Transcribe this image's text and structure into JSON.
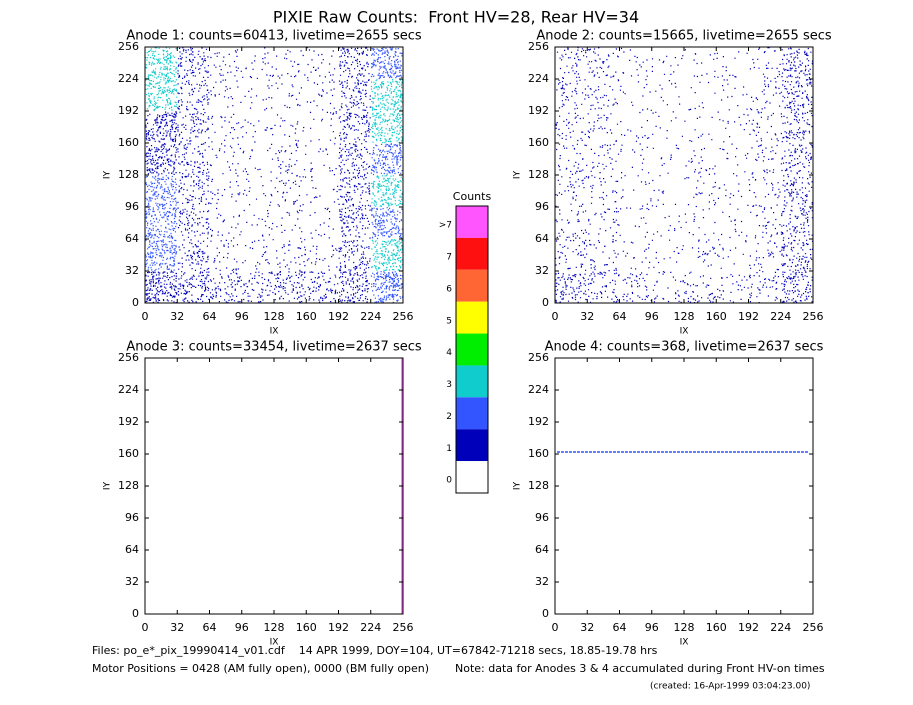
{
  "title": "PIXIE Raw Counts:  Front HV=28, Rear HV=34",
  "chart_data": [
    {
      "type": "heatmap",
      "title": "Anode 1: counts=60413, livetime=2655 secs",
      "xlabel": "IX",
      "ylabel": "IY",
      "xlim": [
        0,
        256
      ],
      "ylim": [
        0,
        256
      ],
      "xticks": [
        0,
        32,
        64,
        96,
        128,
        160,
        192,
        224,
        256
      ],
      "yticks": [
        0,
        32,
        64,
        96,
        128,
        160,
        192,
        224,
        256
      ],
      "density": [
        [
          0.55,
          0.3,
          0.1,
          0.08,
          0.08,
          0.08,
          0.3,
          0.6
        ],
        [
          0.55,
          0.25,
          0.08,
          0.06,
          0.06,
          0.08,
          0.3,
          0.6
        ],
        [
          0.5,
          0.25,
          0.08,
          0.06,
          0.06,
          0.06,
          0.3,
          0.55
        ],
        [
          0.5,
          0.25,
          0.08,
          0.06,
          0.12,
          0.06,
          0.3,
          0.55
        ],
        [
          0.5,
          0.25,
          0.08,
          0.06,
          0.12,
          0.06,
          0.3,
          0.55
        ],
        [
          0.5,
          0.25,
          0.08,
          0.06,
          0.06,
          0.06,
          0.3,
          0.55
        ],
        [
          0.55,
          0.25,
          0.1,
          0.08,
          0.12,
          0.08,
          0.3,
          0.6
        ],
        [
          0.6,
          0.35,
          0.25,
          0.2,
          0.3,
          0.25,
          0.4,
          0.65
        ]
      ]
    },
    {
      "type": "heatmap",
      "title": "Anode 2: counts=15665, livetime=2655 secs",
      "xlabel": "IX",
      "ylabel": "IY",
      "xlim": [
        0,
        256
      ],
      "ylim": [
        0,
        256
      ],
      "xticks": [
        0,
        32,
        64,
        96,
        128,
        160,
        192,
        224,
        256
      ],
      "yticks": [
        0,
        32,
        64,
        96,
        128,
        160,
        192,
        224,
        256
      ],
      "density": [
        [
          0.15,
          0.15,
          0.06,
          0.05,
          0.05,
          0.05,
          0.1,
          0.3
        ],
        [
          0.15,
          0.12,
          0.05,
          0.04,
          0.04,
          0.05,
          0.1,
          0.3
        ],
        [
          0.12,
          0.1,
          0.05,
          0.04,
          0.04,
          0.05,
          0.1,
          0.25
        ],
        [
          0.12,
          0.1,
          0.05,
          0.04,
          0.08,
          0.05,
          0.1,
          0.25
        ],
        [
          0.12,
          0.1,
          0.05,
          0.04,
          0.08,
          0.05,
          0.1,
          0.25
        ],
        [
          0.12,
          0.1,
          0.05,
          0.04,
          0.05,
          0.05,
          0.1,
          0.25
        ],
        [
          0.15,
          0.12,
          0.06,
          0.05,
          0.08,
          0.05,
          0.1,
          0.3
        ],
        [
          0.3,
          0.2,
          0.15,
          0.1,
          0.15,
          0.1,
          0.15,
          0.35
        ]
      ]
    },
    {
      "type": "heatmap",
      "title": "Anode 3: counts=33454, livetime=2637 secs",
      "xlabel": "IX",
      "ylabel": "IY",
      "xlim": [
        0,
        256
      ],
      "ylim": [
        0,
        256
      ],
      "xticks": [
        0,
        32,
        64,
        96,
        128,
        160,
        192,
        224,
        256
      ],
      "yticks": [
        0,
        32,
        64,
        96,
        128,
        160,
        192,
        224,
        256
      ],
      "line_x": 255
    },
    {
      "type": "heatmap",
      "title": "Anode 4: counts=368, livetime=2637 secs",
      "xlabel": "IX",
      "ylabel": "IY",
      "xlim": [
        0,
        256
      ],
      "ylim": [
        0,
        256
      ],
      "xticks": [
        0,
        32,
        64,
        96,
        128,
        160,
        192,
        224,
        256
      ],
      "yticks": [
        0,
        32,
        64,
        96,
        128,
        160,
        192,
        224,
        256
      ],
      "line_y": 162
    }
  ],
  "colorbar": {
    "title": "Counts",
    "levels": [
      {
        "label": ">7",
        "color": "#ff55ff"
      },
      {
        "label": "7",
        "color": "#ff1010"
      },
      {
        "label": "6",
        "color": "#ff6633"
      },
      {
        "label": "5",
        "color": "#ffff00"
      },
      {
        "label": "4",
        "color": "#00ee00"
      },
      {
        "label": "3",
        "color": "#11cccc"
      },
      {
        "label": "2",
        "color": "#3355ff"
      },
      {
        "label": "1",
        "color": "#0000bb"
      },
      {
        "label": "0",
        "color": "#ffffff"
      }
    ]
  },
  "footer": {
    "files": "Files: po_e*_pix_19990414_v01.cdf    14 APR 1999, DOY=104, UT=67842-71218 secs, 18.85-19.78 hrs",
    "motor": "Motor Positions = 0428 (AM fully open), 0000 (BM fully open)",
    "note": "Note: data for Anodes 3 & 4 accumulated during Front HV-on times",
    "created": "(created: 16-Apr-1999 03:04:23.00)"
  }
}
